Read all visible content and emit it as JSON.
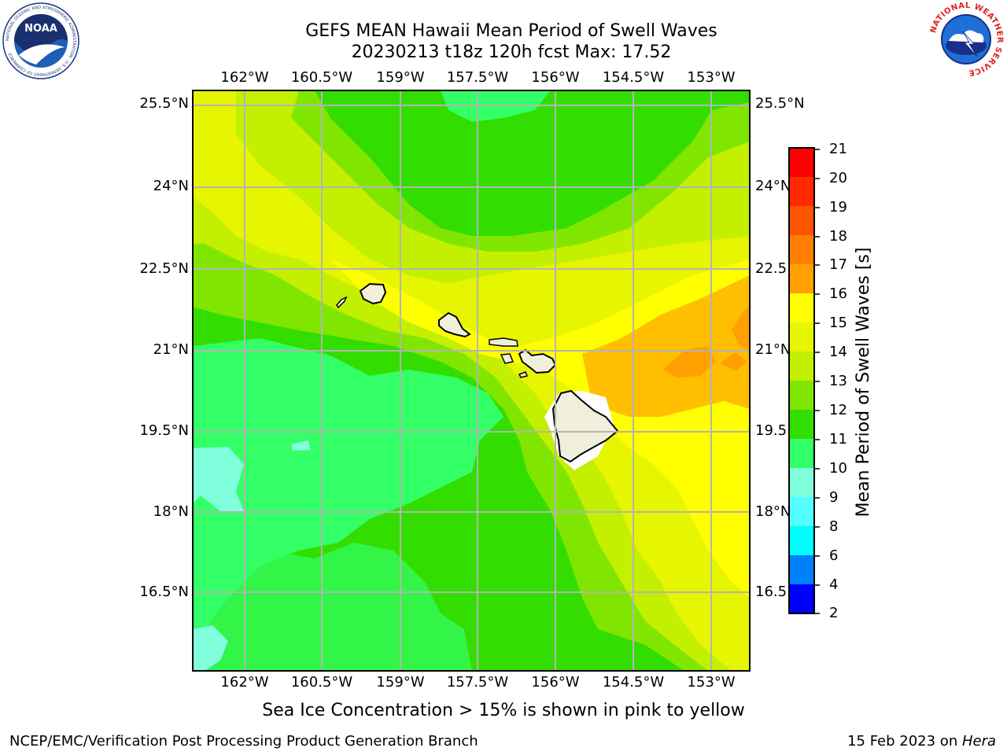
{
  "title": {
    "line1": "GEFS MEAN Hawaii Mean Period of Swell Waves",
    "line2": "20230213 t18z 120h fcst   Max: 17.52"
  },
  "lon_labels": [
    "162°W",
    "160.5°W",
    "159°W",
    "157.5°W",
    "156°W",
    "154.5°W",
    "153°W"
  ],
  "lat_labels": [
    "25.5°N",
    "24°N",
    "22.5°N",
    "21°N",
    "19.5°N",
    "18°N",
    "16.5°N"
  ],
  "lat_labels_right": [
    "25.5°N",
    "24°N",
    "22.5",
    "21°N",
    "19.5",
    "18°N",
    "16.5"
  ],
  "colorbar": {
    "title": "Mean Period of Swell Waves [s]",
    "ticks": [
      "21",
      "20",
      "19",
      "18",
      "17",
      "16",
      "15",
      "14",
      "13",
      "12",
      "11",
      "10",
      "9",
      "8",
      "6",
      "4",
      "2"
    ],
    "colors": [
      "#ff0000",
      "#ff2a00",
      "#ff5500",
      "#ff7f00",
      "#ff9f00",
      "#ffbf00",
      "#ffff00",
      "#e6f500",
      "#c3ef00",
      "#80e600",
      "#33dd00",
      "#33ff66",
      "#80ffdd",
      "#55ffff",
      "#00ffff",
      "#0080ff",
      "#0000ff"
    ]
  },
  "caption": "Sea Ice Concentration > 15% is shown in pink to yellow",
  "footer": {
    "left": "NCEP/EMC/Verification Post Processing Product Generation Branch",
    "right_prefix": "15 Feb 2023 on ",
    "right_italic": "Hera"
  },
  "logos": {
    "noaa": {
      "icon": "noaa-logo",
      "text": "NOAA",
      "ring_text": "NATIONAL OCEANIC AND ATMOSPHERIC ADMINISTRATION · U.S. DEPARTMENT OF COMMERCE"
    },
    "nws": {
      "icon": "nws-logo",
      "ring_text": "NATIONAL WEATHER SERVICE"
    }
  },
  "map_colors": {
    "c10": "#33ff66",
    "c11": "#33dd00",
    "c12": "#80e600",
    "c13": "#c3ef00",
    "c14": "#e6f500",
    "c15": "#ffff00",
    "c16": "#ffbf00",
    "c17": "#ff9f00",
    "c9": "#80ffdd",
    "land": "#efefdc",
    "grid": "#b4b4b4"
  }
}
